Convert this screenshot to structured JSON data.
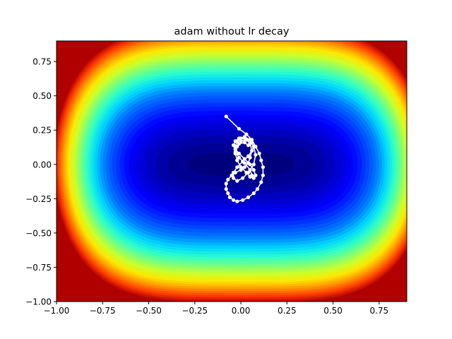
{
  "chart_data": {
    "type": "contour",
    "title": "adam without lr decay",
    "xlabel": "",
    "ylabel": "",
    "xlim": [
      -1.0,
      0.9
    ],
    "ylim": [
      -1.0,
      0.9
    ],
    "xticks": [
      -1.0,
      -0.75,
      -0.5,
      -0.25,
      0.0,
      0.25,
      0.5,
      0.75
    ],
    "xtick_labels": [
      "−1.00",
      "−0.75",
      "−0.50",
      "−0.25",
      "0.00",
      "0.25",
      "0.50",
      "0.75"
    ],
    "yticks": [
      -1.0,
      -0.75,
      -0.5,
      -0.25,
      0.0,
      0.25,
      0.5,
      0.75
    ],
    "ytick_labels": [
      "−1.00",
      "−0.75",
      "−0.50",
      "−0.25",
      "0.00",
      "0.25",
      "0.50",
      "0.75"
    ],
    "colormap": "jet",
    "grid": false,
    "contour_color_stops": [
      "#00007f",
      "#0000c4",
      "#0000ff",
      "#0040ff",
      "#0080ff",
      "#00d4ff",
      "#2cffca",
      "#7cff7a",
      "#caff2c",
      "#ffe600",
      "#ff9500",
      "#ff3b00",
      "#b00000"
    ],
    "trajectory": {
      "color": "#ffffff",
      "marker": "circle",
      "x": [
        -0.08,
        -0.01,
        0.03,
        0.06,
        0.08,
        0.1,
        0.11,
        0.12,
        0.12,
        0.11,
        0.09,
        0.07,
        0.04,
        0.01,
        -0.02,
        -0.04,
        -0.06,
        -0.07,
        -0.08,
        -0.08,
        -0.07,
        -0.05,
        -0.03,
        0.0,
        0.02,
        0.04,
        0.05,
        0.06,
        0.05,
        0.03,
        0.0,
        -0.02,
        -0.03,
        -0.03,
        -0.02,
        0.0,
        0.03,
        0.05,
        0.07,
        0.08,
        0.07,
        0.05,
        0.02,
        -0.01,
        -0.03,
        -0.04,
        -0.03,
        -0.01,
        0.02,
        0.05,
        0.07,
        0.08,
        0.07,
        0.04,
        0.01,
        -0.02,
        -0.04,
        -0.04,
        -0.02,
        0.01,
        0.04,
        0.06,
        0.07,
        0.06,
        0.03,
        0.0,
        -0.02,
        -0.03,
        -0.02,
        0.0,
        0.03,
        0.05,
        0.06,
        0.05,
        0.02,
        -0.01,
        -0.03,
        -0.03,
        -0.01,
        0.02,
        0.04
      ],
      "y": [
        0.35,
        0.26,
        0.22,
        0.18,
        0.13,
        0.08,
        0.03,
        -0.02,
        -0.08,
        -0.13,
        -0.18,
        -0.21,
        -0.24,
        -0.26,
        -0.27,
        -0.26,
        -0.24,
        -0.21,
        -0.18,
        -0.14,
        -0.11,
        -0.08,
        -0.06,
        -0.04,
        -0.02,
        0.01,
        0.05,
        0.1,
        0.15,
        0.18,
        0.19,
        0.17,
        0.13,
        0.08,
        0.03,
        -0.02,
        -0.06,
        -0.09,
        -0.1,
        -0.08,
        -0.04,
        0.0,
        0.04,
        0.08,
        0.11,
        0.14,
        0.17,
        0.19,
        0.2,
        0.18,
        0.13,
        0.07,
        0.0,
        -0.06,
        -0.1,
        -0.12,
        -0.1,
        -0.06,
        -0.02,
        0.02,
        0.06,
        0.1,
        0.13,
        0.16,
        0.18,
        0.17,
        0.13,
        0.08,
        0.03,
        -0.02,
        -0.06,
        -0.09,
        -0.08,
        -0.04,
        0.01,
        0.05,
        0.09,
        0.12,
        0.15,
        0.16,
        0.14
      ]
    }
  }
}
